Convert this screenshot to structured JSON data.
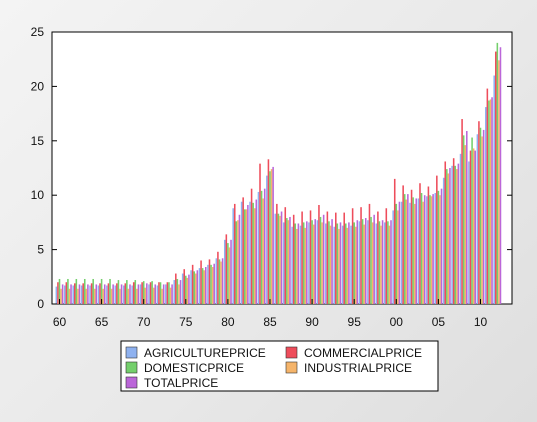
{
  "chart_data": {
    "type": "bar",
    "title": "",
    "xlabel": "",
    "ylabel": "",
    "x": [
      1960,
      1961,
      1962,
      1963,
      1964,
      1965,
      1966,
      1967,
      1968,
      1969,
      1970,
      1971,
      1972,
      1973,
      1974,
      1975,
      1976,
      1977,
      1978,
      1979,
      1980,
      1981,
      1982,
      1983,
      1984,
      1985,
      1986,
      1987,
      1988,
      1989,
      1990,
      1991,
      1992,
      1993,
      1994,
      1995,
      1996,
      1997,
      1998,
      1999,
      2000,
      2001,
      2002,
      2003,
      2004,
      2005,
      2006,
      2007,
      2008,
      2009,
      2010,
      2011,
      2012
    ],
    "x_tick_labels": [
      {
        "x": 1960,
        "label": "60"
      },
      {
        "x": 1965,
        "label": "65"
      },
      {
        "x": 1970,
        "label": "70"
      },
      {
        "x": 1975,
        "label": "75"
      },
      {
        "x": 1980,
        "label": "80"
      },
      {
        "x": 1985,
        "label": "85"
      },
      {
        "x": 1990,
        "label": "90"
      },
      {
        "x": 1995,
        "label": "95"
      },
      {
        "x": 2000,
        "label": "00"
      },
      {
        "x": 2005,
        "label": "05"
      },
      {
        "x": 2010,
        "label": "10"
      }
    ],
    "ylim": [
      0,
      25
    ],
    "y_ticks": [
      0,
      5,
      10,
      15,
      20,
      25
    ],
    "grid": false,
    "legend_position": "bottom",
    "series": [
      {
        "name": "AGRICULTUREPRICE",
        "color": "#8fb2f0",
        "values": [
          1.6,
          1.7,
          1.7,
          1.7,
          1.7,
          1.7,
          1.7,
          1.7,
          1.7,
          1.7,
          1.8,
          1.8,
          1.7,
          1.8,
          2.2,
          2.8,
          3.1,
          3.3,
          3.6,
          4.2,
          5.9,
          8.8,
          9.4,
          9.4,
          10.3,
          11.8,
          8.3,
          7.5,
          7.1,
          7.2,
          7.5,
          7.7,
          7.4,
          7.1,
          7.2,
          7.2,
          7.6,
          7.7,
          7.4,
          7.5,
          8.6,
          9.4,
          9.3,
          9.7,
          9.9,
          10.2,
          11.6,
          12.7,
          13.8,
          13.1,
          15.6,
          18.1,
          21.0
        ]
      },
      {
        "name": "COMMERCIALPRICE",
        "color": "#ee4d5b",
        "values": [
          2.0,
          2.0,
          1.9,
          1.9,
          1.9,
          1.9,
          1.9,
          1.9,
          1.9,
          2.0,
          2.0,
          2.0,
          2.0,
          2.0,
          2.8,
          3.2,
          3.6,
          4.0,
          4.1,
          4.8,
          6.4,
          9.2,
          9.8,
          10.6,
          12.9,
          13.3,
          9.2,
          8.9,
          8.2,
          8.5,
          8.6,
          9.1,
          8.5,
          8.4,
          8.4,
          8.8,
          8.9,
          9.2,
          8.5,
          8.8,
          11.5,
          10.9,
          10.5,
          11.1,
          10.8,
          11.8,
          13.1,
          13.4,
          17.0,
          14.1,
          16.8,
          19.8,
          23.2
        ]
      },
      {
        "name": "DOMESTICPRICE",
        "color": "#74cf6c",
        "values": [
          2.3,
          2.3,
          2.3,
          2.3,
          2.3,
          2.3,
          2.3,
          2.2,
          2.2,
          2.2,
          2.1,
          2.1,
          2.0,
          2.0,
          2.3,
          2.6,
          3.0,
          3.3,
          3.6,
          4.1,
          5.6,
          7.6,
          8.7,
          9.3,
          10.4,
          12.2,
          8.3,
          7.9,
          7.4,
          7.5,
          7.7,
          8.0,
          7.6,
          7.4,
          7.4,
          7.5,
          7.8,
          8.0,
          7.6,
          7.6,
          9.2,
          10.1,
          9.8,
          10.2,
          10.0,
          10.4,
          12.4,
          12.7,
          15.5,
          15.3,
          16.2,
          18.7,
          24.0
        ]
      },
      {
        "name": "INDUSTRIALPRICE",
        "color": "#f5b46a",
        "values": [
          1.4,
          1.4,
          1.4,
          1.4,
          1.4,
          1.4,
          1.4,
          1.4,
          1.4,
          1.4,
          1.5,
          1.5,
          1.4,
          1.5,
          1.8,
          2.4,
          2.8,
          3.1,
          3.4,
          3.9,
          5.2,
          7.7,
          8.7,
          8.8,
          9.7,
          12.4,
          8.1,
          7.7,
          6.9,
          7.0,
          7.3,
          7.5,
          7.2,
          6.9,
          7.0,
          7.1,
          7.3,
          7.5,
          7.2,
          7.2,
          8.6,
          9.6,
          9.2,
          9.4,
          9.9,
          10.0,
          12.0,
          12.4,
          14.6,
          14.3,
          15.4,
          18.8,
          22.4
        ]
      },
      {
        "name": "TOTALPRICE",
        "color": "#bb66d9",
        "values": [
          1.8,
          1.8,
          1.8,
          1.8,
          1.8,
          1.8,
          1.8,
          1.8,
          1.8,
          1.8,
          1.9,
          1.8,
          1.8,
          1.8,
          2.2,
          2.7,
          3.1,
          3.4,
          3.7,
          4.2,
          5.9,
          8.2,
          9.1,
          9.6,
          10.6,
          12.6,
          8.5,
          8.0,
          7.4,
          7.6,
          7.8,
          8.2,
          7.8,
          7.5,
          7.5,
          7.7,
          7.9,
          8.2,
          7.7,
          7.7,
          9.4,
          10.1,
          9.7,
          10.0,
          10.1,
          10.6,
          12.5,
          12.9,
          15.9,
          14.1,
          16.0,
          19.0,
          23.6
        ]
      }
    ]
  }
}
